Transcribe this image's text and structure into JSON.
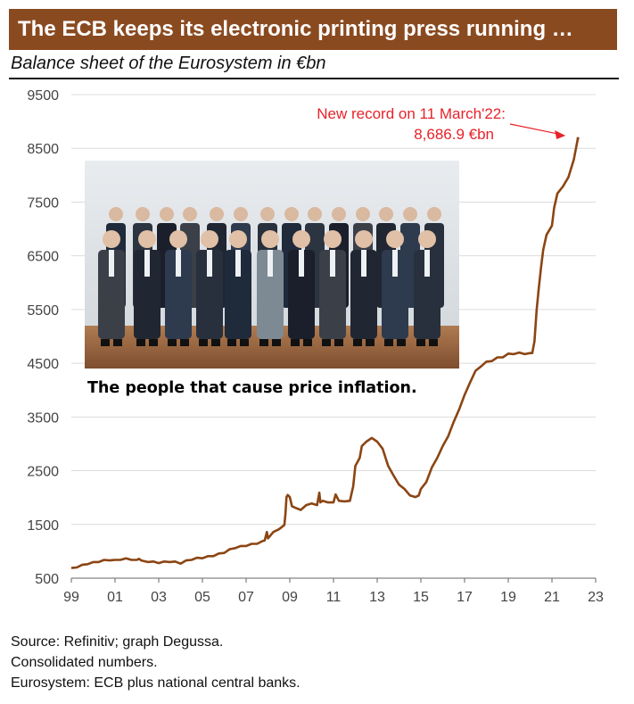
{
  "title": "The ECB keeps its electronic printing press running …",
  "subtitle": "Balance sheet of the Eurosystem in €bn",
  "photo_caption": "The people that cause price inflation.",
  "footnotes": [
    "Source: Refinitiv; graph Degussa.",
    "Consolidated numbers.",
    "Eurosystem: ECB plus national central banks."
  ],
  "colors": {
    "title_bg": "#8a4a20",
    "series": "#8b4513",
    "annotation": "#e8222a",
    "grid": "#dcdcdc"
  },
  "chart_data": {
    "type": "line",
    "title": "Balance sheet of the Eurosystem in €bn",
    "xlabel": "",
    "ylabel": "",
    "xlim": [
      1999,
      2023
    ],
    "ylim": [
      500,
      9500
    ],
    "grid": true,
    "yticks": [
      500,
      1500,
      2500,
      3500,
      4500,
      5500,
      6500,
      7500,
      8500,
      9500
    ],
    "xticks": [
      {
        "value": 1999,
        "label": "99"
      },
      {
        "value": 2001,
        "label": "01"
      },
      {
        "value": 2003,
        "label": "03"
      },
      {
        "value": 2005,
        "label": "05"
      },
      {
        "value": 2007,
        "label": "07"
      },
      {
        "value": 2009,
        "label": "09"
      },
      {
        "value": 2011,
        "label": "11"
      },
      {
        "value": 2013,
        "label": "13"
      },
      {
        "value": 2015,
        "label": "15"
      },
      {
        "value": 2017,
        "label": "17"
      },
      {
        "value": 2019,
        "label": "19"
      },
      {
        "value": 2021,
        "label": "21"
      },
      {
        "value": 2023,
        "label": "23"
      }
    ],
    "annotation": {
      "text": [
        "New record on 11 March'22:",
        "8,686.9 €bn"
      ],
      "x": 2022.19,
      "y": 8686.9
    },
    "series": [
      {
        "name": "",
        "x": [
          1999.0,
          1999.25,
          1999.5,
          1999.75,
          2000.0,
          2000.25,
          2000.5,
          2000.75,
          2001.0,
          2001.25,
          2001.5,
          2001.75,
          2002.0,
          2002.1,
          2002.2,
          2002.5,
          2002.75,
          2003.0,
          2003.25,
          2003.5,
          2003.75,
          2004.0,
          2004.25,
          2004.5,
          2004.75,
          2005.0,
          2005.25,
          2005.5,
          2005.75,
          2006.0,
          2006.25,
          2006.5,
          2006.75,
          2007.0,
          2007.25,
          2007.5,
          2007.75,
          2007.85,
          2007.95,
          2008.0,
          2008.25,
          2008.5,
          2008.75,
          2008.8,
          2008.85,
          2008.9,
          2009.0,
          2009.1,
          2009.25,
          2009.5,
          2009.75,
          2010.0,
          2010.25,
          2010.35,
          2010.4,
          2010.5,
          2010.75,
          2011.0,
          2011.1,
          2011.25,
          2011.5,
          2011.75,
          2011.9,
          2012.0,
          2012.1,
          2012.2,
          2012.3,
          2012.5,
          2012.75,
          2013.0,
          2013.25,
          2013.5,
          2013.75,
          2014.0,
          2014.25,
          2014.5,
          2014.75,
          2014.9,
          2015.0,
          2015.25,
          2015.5,
          2015.75,
          2016.0,
          2016.25,
          2016.5,
          2016.75,
          2017.0,
          2017.25,
          2017.5,
          2017.75,
          2018.0,
          2018.25,
          2018.5,
          2018.75,
          2019.0,
          2019.25,
          2019.5,
          2019.75,
          2020.0,
          2020.1,
          2020.2,
          2020.3,
          2020.4,
          2020.5,
          2020.6,
          2020.75,
          2021.0,
          2021.1,
          2021.25,
          2021.5,
          2021.75,
          2022.0,
          2022.19
        ],
        "values": [
          680,
          710,
          740,
          770,
          790,
          810,
          830,
          840,
          830,
          850,
          860,
          850,
          830,
          870,
          820,
          810,
          800,
          790,
          800,
          810,
          800,
          780,
          820,
          850,
          870,
          880,
          900,
          920,
          950,
          980,
          1030,
          1070,
          1090,
          1110,
          1130,
          1150,
          1180,
          1210,
          1350,
          1250,
          1350,
          1420,
          1480,
          1700,
          2000,
          2060,
          2000,
          1850,
          1800,
          1780,
          1850,
          1900,
          1850,
          2100,
          1900,
          1950,
          1900,
          1920,
          2050,
          1950,
          1920,
          1950,
          2200,
          2600,
          2650,
          2750,
          2950,
          3050,
          3100,
          3050,
          2900,
          2600,
          2400,
          2250,
          2150,
          2050,
          2000,
          2050,
          2150,
          2300,
          2550,
          2750,
          2950,
          3150,
          3400,
          3650,
          3900,
          4150,
          4350,
          4450,
          4520,
          4550,
          4600,
          4620,
          4670,
          4680,
          4690,
          4680,
          4680,
          4700,
          4900,
          5500,
          5900,
          6300,
          6600,
          6900,
          7050,
          7400,
          7650,
          7800,
          7950,
          8300,
          8686.9
        ]
      }
    ]
  }
}
